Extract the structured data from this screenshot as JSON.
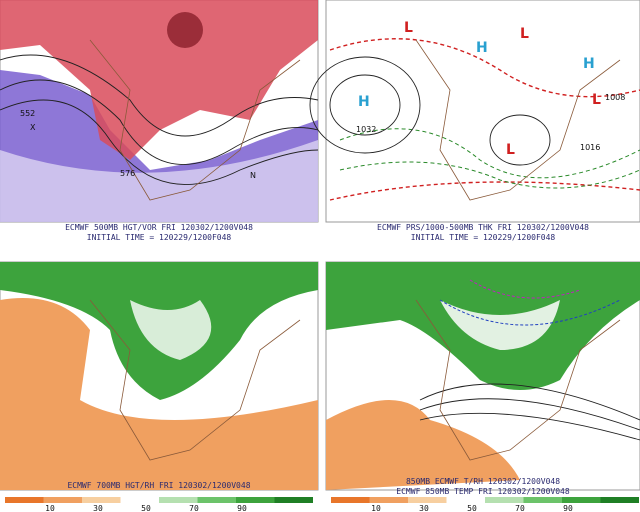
{
  "panels": [
    {
      "captions": [
        "ECMWF 500MB HGT/VOR FRI 120302/1200V048",
        "INITIAL TIME = 120229/1200F048"
      ],
      "labels": [
        "552",
        "576",
        "N",
        "X"
      ]
    },
    {
      "captions": [
        "ECMWF PRS/1000-500MB THK FRI 120302/1200V048",
        "INITIAL TIME = 120229/1200F048"
      ],
      "labels": [
        "H",
        "H",
        "H",
        "L",
        "L",
        "L",
        "L",
        "1032",
        "1008",
        "1016"
      ]
    },
    {
      "captions": [
        "ECMWF 700MB HGT/RH FRI 120302/1200V048"
      ],
      "colorbar": [
        "10",
        "30",
        "50",
        "70",
        "90"
      ]
    },
    {
      "captions": [
        "850MB ECMWF T/RH 120302/1200V048",
        "ECMWF 850MB TEMP FRI 120302/1200V048"
      ],
      "colorbar": [
        "10",
        "30",
        "50",
        "70",
        "90"
      ]
    }
  ]
}
